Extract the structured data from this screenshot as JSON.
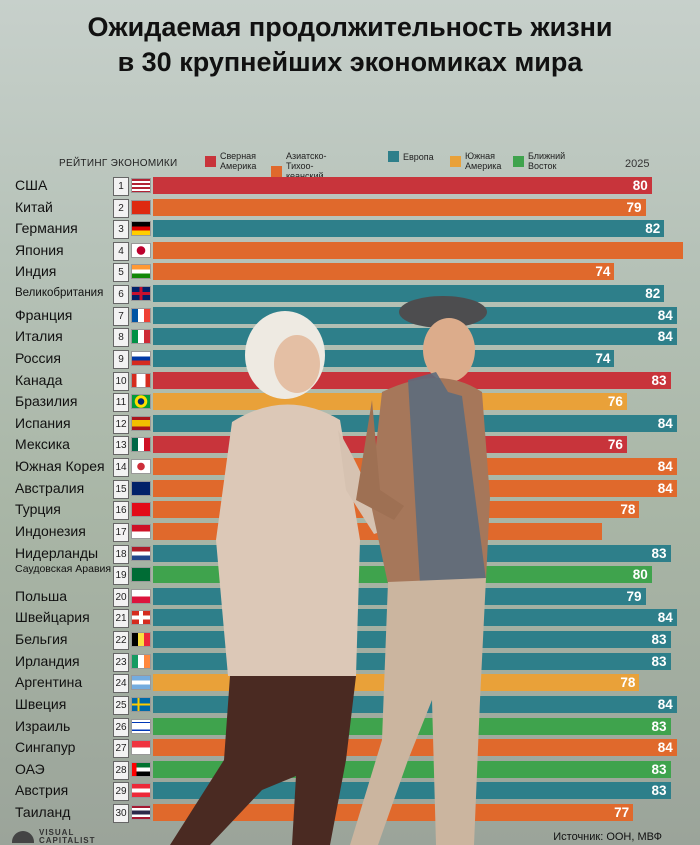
{
  "title_line1": "Ожидаемая продолжительность жизни",
  "title_line2": "в 30 крупнейших экономиках мира",
  "header_rank": "РЕЙТИНГ ЭКОНОМИКИ",
  "header_year": "2025",
  "legend": [
    {
      "line1": "Сверная",
      "line2": "Америка",
      "color": "#c8343b"
    },
    {
      "line1": "Азиатско-Тихоо-",
      "line2": "кеанский регион",
      "color": "#e0692c"
    },
    {
      "line1": "Европа",
      "line2": "",
      "color": "#2e7f8a"
    },
    {
      "line1": "Южная",
      "line2": "Америка",
      "color": "#e9a139"
    },
    {
      "line1": "Ближний",
      "line2": "Восток",
      "color": "#3fa34d"
    }
  ],
  "source": "Источник: ООН, МВФ",
  "brand": {
    "line1": "VISUAL",
    "line2": "CAPITALIST"
  },
  "chart_data": {
    "type": "bar",
    "title": "Ожидаемая продолжительность жизни в 30 крупнейших экономиках мира",
    "xlabel": "",
    "ylabel": "РЕЙТИНГ ЭКОНОМИКИ",
    "xlim": [
      0,
      85
    ],
    "series_name": "2025",
    "rows": [
      {
        "rank": "1",
        "country": "США",
        "region": "Северная Америка",
        "value": 80,
        "label": "80",
        "flag": "us"
      },
      {
        "rank": "2",
        "country": "Китай",
        "region": "Азиатско-Тихоокеанский регион",
        "value": 79,
        "label": "79",
        "flag": "cn"
      },
      {
        "rank": "3",
        "country": "Германия",
        "region": "Европа",
        "value": 82,
        "label": "82",
        "flag": "de"
      },
      {
        "rank": "4",
        "country": "Япония",
        "region": "Азиатско-Тихоокеанский регион",
        "value": 85,
        "label": "",
        "flag": "jp"
      },
      {
        "rank": "5",
        "country": "Индия",
        "region": "Азиатско-Тихоокеанский регион",
        "value": 74,
        "label": "74",
        "flag": "in"
      },
      {
        "rank": "6",
        "country": "Великобритания",
        "region": "Европа",
        "value": 82,
        "label": "82",
        "flag": "gb"
      },
      {
        "rank": "7",
        "country": "Франция",
        "region": "Европа",
        "value": 84,
        "label": "84",
        "flag": "fr"
      },
      {
        "rank": "8",
        "country": "Италия",
        "region": "Европа",
        "value": 84,
        "label": "84",
        "flag": "it"
      },
      {
        "rank": "9",
        "country": "Россия",
        "region": "Европа",
        "value": 74,
        "label": "74",
        "flag": "ru"
      },
      {
        "rank": "10",
        "country": "Канада",
        "region": "Северная Америка",
        "value": 83,
        "label": "83",
        "flag": "ca"
      },
      {
        "rank": "11",
        "country": "Бразилия",
        "region": "Южная Америка",
        "value": 76,
        "label": "76",
        "flag": "br"
      },
      {
        "rank": "12",
        "country": "Испания",
        "region": "Европа",
        "value": 84,
        "label": "84",
        "flag": "es"
      },
      {
        "rank": "13",
        "country": "Мексика",
        "region": "Северная Америка",
        "value": 76,
        "label": "76",
        "flag": "mx"
      },
      {
        "rank": "14",
        "country": "Южная Корея",
        "region": "Азиатско-Тихоокеанский регион",
        "value": 84,
        "label": "84",
        "flag": "kr"
      },
      {
        "rank": "15",
        "country": "Австралия",
        "region": "Азиатско-Тихоокеанский регион",
        "value": 84,
        "label": "84",
        "flag": "au"
      },
      {
        "rank": "16",
        "country": "Турция",
        "region": "Азиатско-Тихоокеанский регион",
        "value": 78,
        "label": "78",
        "flag": "tr"
      },
      {
        "rank": "17",
        "country": "Индонезия",
        "region": "Азиатско-Тихоокеанский регион",
        "value": 72,
        "label": "",
        "flag": "id"
      },
      {
        "rank": "18",
        "country": "Нидерланды",
        "region": "Европа",
        "value": 83,
        "label": "83",
        "flag": "nl"
      },
      {
        "rank": "19",
        "country": "Саудовская Аравия",
        "region": "Ближний Восток",
        "value": 80,
        "label": "80",
        "flag": "sa"
      },
      {
        "rank": "20",
        "country": "Польша",
        "region": "Европа",
        "value": 79,
        "label": "79",
        "flag": "pl"
      },
      {
        "rank": "21",
        "country": "Швейцария",
        "region": "Европа",
        "value": 84,
        "label": "84",
        "flag": "ch"
      },
      {
        "rank": "22",
        "country": "Бельгия",
        "region": "Европа",
        "value": 83,
        "label": "83",
        "flag": "be"
      },
      {
        "rank": "23",
        "country": "Ирландия",
        "region": "Европа",
        "value": 83,
        "label": "83",
        "flag": "ie"
      },
      {
        "rank": "24",
        "country": "Аргентина",
        "region": "Южная Америка",
        "value": 78,
        "label": "78",
        "flag": "ar"
      },
      {
        "rank": "25",
        "country": "Швеция",
        "region": "Европа",
        "value": 84,
        "label": "84",
        "flag": "se"
      },
      {
        "rank": "26",
        "country": "Израиль",
        "region": "Ближний Восток",
        "value": 83,
        "label": "83",
        "flag": "il"
      },
      {
        "rank": "27",
        "country": "Сингапур",
        "region": "Азиатско-Тихоокеанский регион",
        "value": 84,
        "label": "84",
        "flag": "sg"
      },
      {
        "rank": "28",
        "country": "ОАЭ",
        "region": "Ближний Восток",
        "value": 83,
        "label": "83",
        "flag": "ae"
      },
      {
        "rank": "29",
        "country": "Австрия",
        "region": "Европа",
        "value": 83,
        "label": "83",
        "flag": "at"
      },
      {
        "rank": "30",
        "country": "Таиланд",
        "region": "Азиатско-Тихоокеанский регион",
        "value": 77,
        "label": "77",
        "flag": "th"
      }
    ]
  }
}
